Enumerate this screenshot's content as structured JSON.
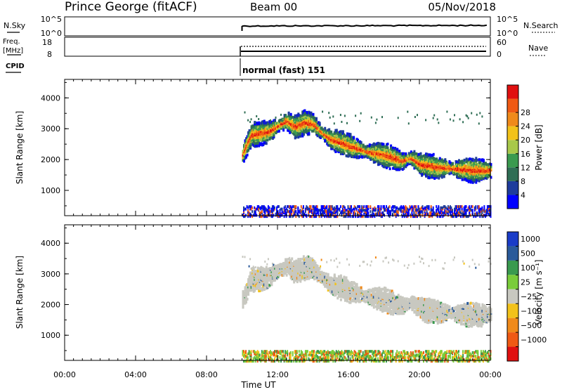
{
  "header": {
    "station": "Prince George (fitACF)",
    "beam": "Beam 00",
    "date": "05/Nov/2018"
  },
  "status_rows": {
    "nsky_label": "N.Sky",
    "nsky_ticks": [
      "10^5",
      "10^0"
    ],
    "nsearch_label": "N.Search",
    "nsearch_ticks": [
      "10^5",
      "10^0"
    ],
    "freq_label_line1": "Freq.",
    "freq_label_line2": "[MHz]",
    "freq_ticks": [
      "18",
      "8"
    ],
    "nave_label": "Nave",
    "nave_ticks": [
      "60",
      "0"
    ],
    "cpid_label": "CPID",
    "cpid_text": "normal (fast) 151"
  },
  "chart_data": [
    {
      "type": "heatmap",
      "name": "power",
      "ylabel": "Slant Range [km]",
      "yticks": [
        1000,
        2000,
        3000,
        4000
      ],
      "ylim": [
        180,
        4600
      ],
      "xlabel": "Time UT",
      "xticks": [
        "00:00",
        "04:00",
        "08:00",
        "12:00",
        "16:00",
        "20:00",
        "00:00"
      ],
      "xlim_hours": [
        0,
        24
      ],
      "data_start_hour": 10.0,
      "colorbar": {
        "label": "Power [dB]",
        "ticks": [
          "4",
          "8",
          "12",
          "16",
          "20",
          "24",
          "28"
        ],
        "colors": [
          "#0000ff",
          "#1e3c9c",
          "#2f6e55",
          "#3a9a4f",
          "#a8c84a",
          "#f2c21a",
          "#f08a1a",
          "#f05a14",
          "#e01010"
        ]
      },
      "echo_band_km": [
        [
          10.0,
          2200
        ],
        [
          10.3,
          2600
        ],
        [
          10.5,
          2850
        ],
        [
          11.0,
          2900
        ],
        [
          11.5,
          2950
        ],
        [
          12.0,
          3150
        ],
        [
          12.5,
          3300
        ],
        [
          13.0,
          3100
        ],
        [
          13.5,
          3250
        ],
        [
          14.0,
          3200
        ],
        [
          14.5,
          2900
        ],
        [
          15.0,
          2700
        ],
        [
          16.0,
          2500
        ],
        [
          17.0,
          2300
        ],
        [
          18.0,
          2200
        ],
        [
          19.0,
          2000
        ],
        [
          19.5,
          2100
        ],
        [
          20.0,
          1900
        ],
        [
          21.0,
          1800
        ],
        [
          22.0,
          1750
        ],
        [
          23.0,
          1700
        ],
        [
          24.0,
          1700
        ]
      ]
    },
    {
      "type": "heatmap",
      "name": "velocity",
      "ylabel": "Slant Range [km]",
      "yticks": [
        1000,
        2000,
        3000,
        4000
      ],
      "ylim": [
        180,
        4600
      ],
      "xlabel": "Time UT",
      "xticks": [
        "00:00",
        "04:00",
        "08:00",
        "12:00",
        "16:00",
        "20:00",
        "00:00"
      ],
      "xlim_hours": [
        0,
        24
      ],
      "data_start_hour": 10.0,
      "colorbar": {
        "label": "Velocity [m s⁻¹]",
        "ticks": [
          "1000",
          "500",
          "100",
          "25",
          "−25",
          "−100",
          "−500",
          "−1000"
        ],
        "colors": [
          "#1a3cc8",
          "#2a5a9a",
          "#3a9a4f",
          "#7acc3a",
          "#c8c8c0",
          "#f2c21a",
          "#f08a1a",
          "#f05a14",
          "#e01010"
        ]
      }
    }
  ]
}
